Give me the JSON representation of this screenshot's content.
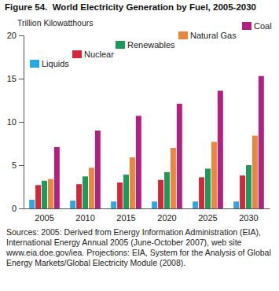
{
  "chart_data": {
    "type": "bar",
    "title": "Figure 54.  World Electricity Generation by Fuel, 2005-2030",
    "y_label": "Trillion Kilowatthours",
    "categories": [
      "2005",
      "2010",
      "2015",
      "2020",
      "2025",
      "2030"
    ],
    "series": [
      {
        "name": "Liquids",
        "color": "#2aa9e0",
        "values": [
          1.0,
          0.9,
          0.8,
          0.8,
          0.8,
          0.8
        ]
      },
      {
        "name": "Nuclear",
        "color": "#d6263a",
        "values": [
          2.7,
          2.8,
          3.0,
          3.3,
          3.6,
          3.8
        ]
      },
      {
        "name": "Renewables",
        "color": "#1d9a5b",
        "values": [
          3.2,
          3.7,
          3.9,
          4.2,
          4.6,
          5.0
        ]
      },
      {
        "name": "Natural Gas",
        "color": "#e8873e",
        "values": [
          3.4,
          4.7,
          5.9,
          7.0,
          7.7,
          8.4
        ]
      },
      {
        "name": "Coal",
        "color": "#b1217f",
        "values": [
          7.1,
          9.0,
          10.7,
          12.1,
          13.6,
          15.3
        ]
      }
    ],
    "ylim": [
      0,
      20
    ],
    "yticks": [
      0,
      5,
      10,
      15,
      20
    ],
    "grid": false,
    "legend": "top",
    "source": "Sources: 2005: Derived from Energy Information Administration (EIA), International Energy Annual 2005 (June-October 2007), web site www.eia.doe.gov/iea. Projections: EIA, System for the Analysis of Global Energy Markets/Global Electricity Module (2008)."
  }
}
